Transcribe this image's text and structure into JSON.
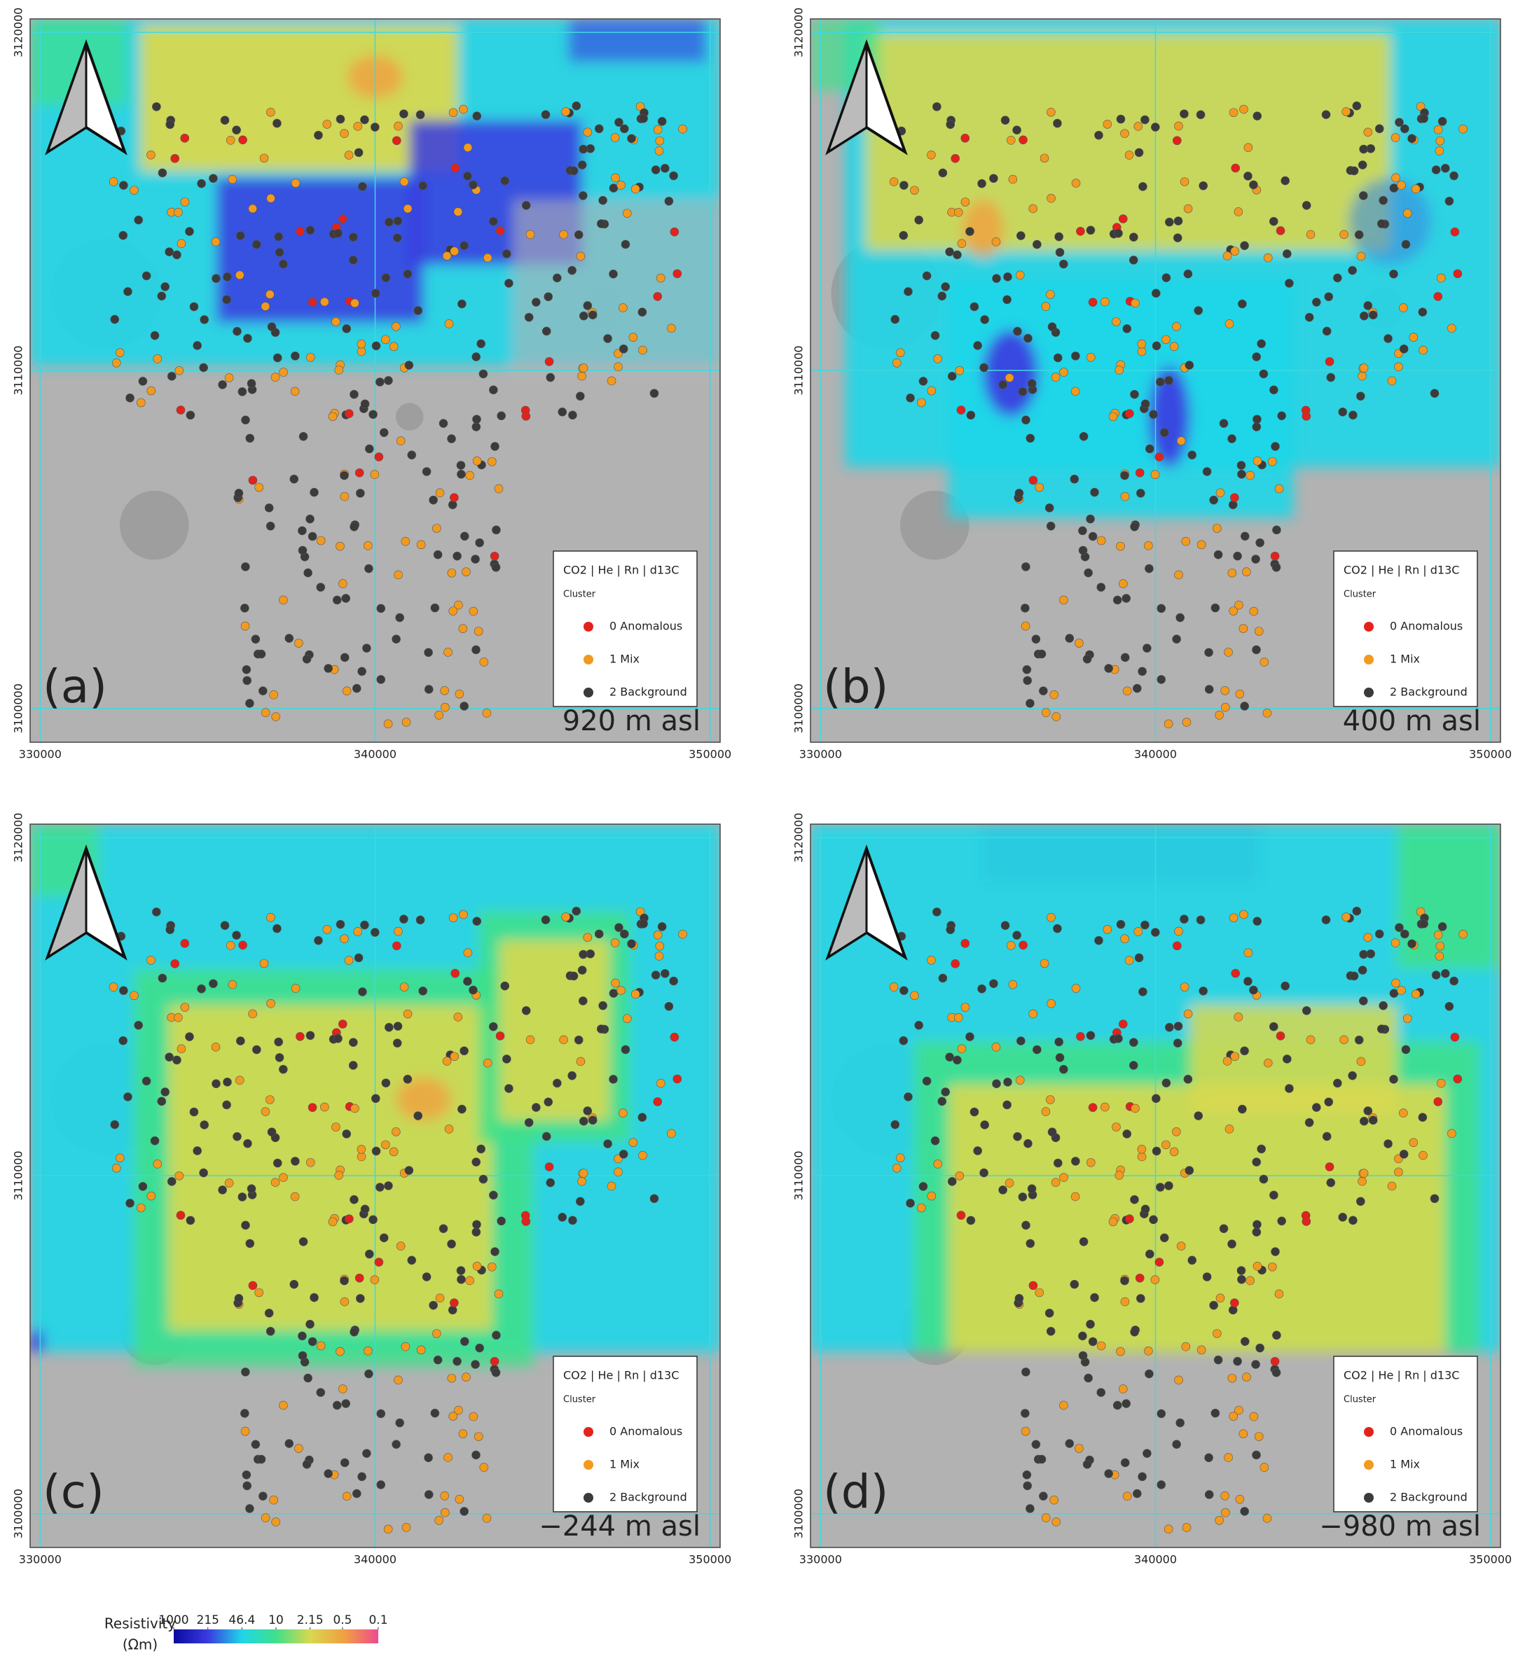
{
  "panels": [
    {
      "label": "(a)",
      "depth": "920 m asl"
    },
    {
      "label": "(b)",
      "depth": "400 m asl"
    },
    {
      "label": "(c)",
      "depth": "−244 m asl"
    },
    {
      "label": "(d)",
      "depth": "−980 m asl"
    }
  ],
  "map": {
    "xlim": [
      329700,
      350300
    ],
    "ylim": [
      3099000,
      3120400
    ],
    "xticks": [
      330000,
      340000,
      350000
    ],
    "yticks": [
      3100000,
      3110000,
      3120000
    ]
  },
  "legend": {
    "title": "CO2 | He | Rn | d13C",
    "subtitle": "Cluster",
    "items": [
      {
        "name": "0 Anomalous",
        "color": "#e3221c"
      },
      {
        "name": "1 Mix",
        "color": "#f29a1e"
      },
      {
        "name": "2 Background",
        "color": "#3b3b3b"
      }
    ]
  },
  "colorbar": {
    "title": "Resistivity",
    "unit": "(Ωm)",
    "ticks": [
      1000,
      215,
      46.4,
      10,
      2.15,
      0.5,
      0.1
    ],
    "colors": [
      "#0a0aa0",
      "#3a3ae0",
      "#1fd6e8",
      "#3fe08a",
      "#d8d850",
      "#f0a040",
      "#f04a90"
    ]
  }
}
